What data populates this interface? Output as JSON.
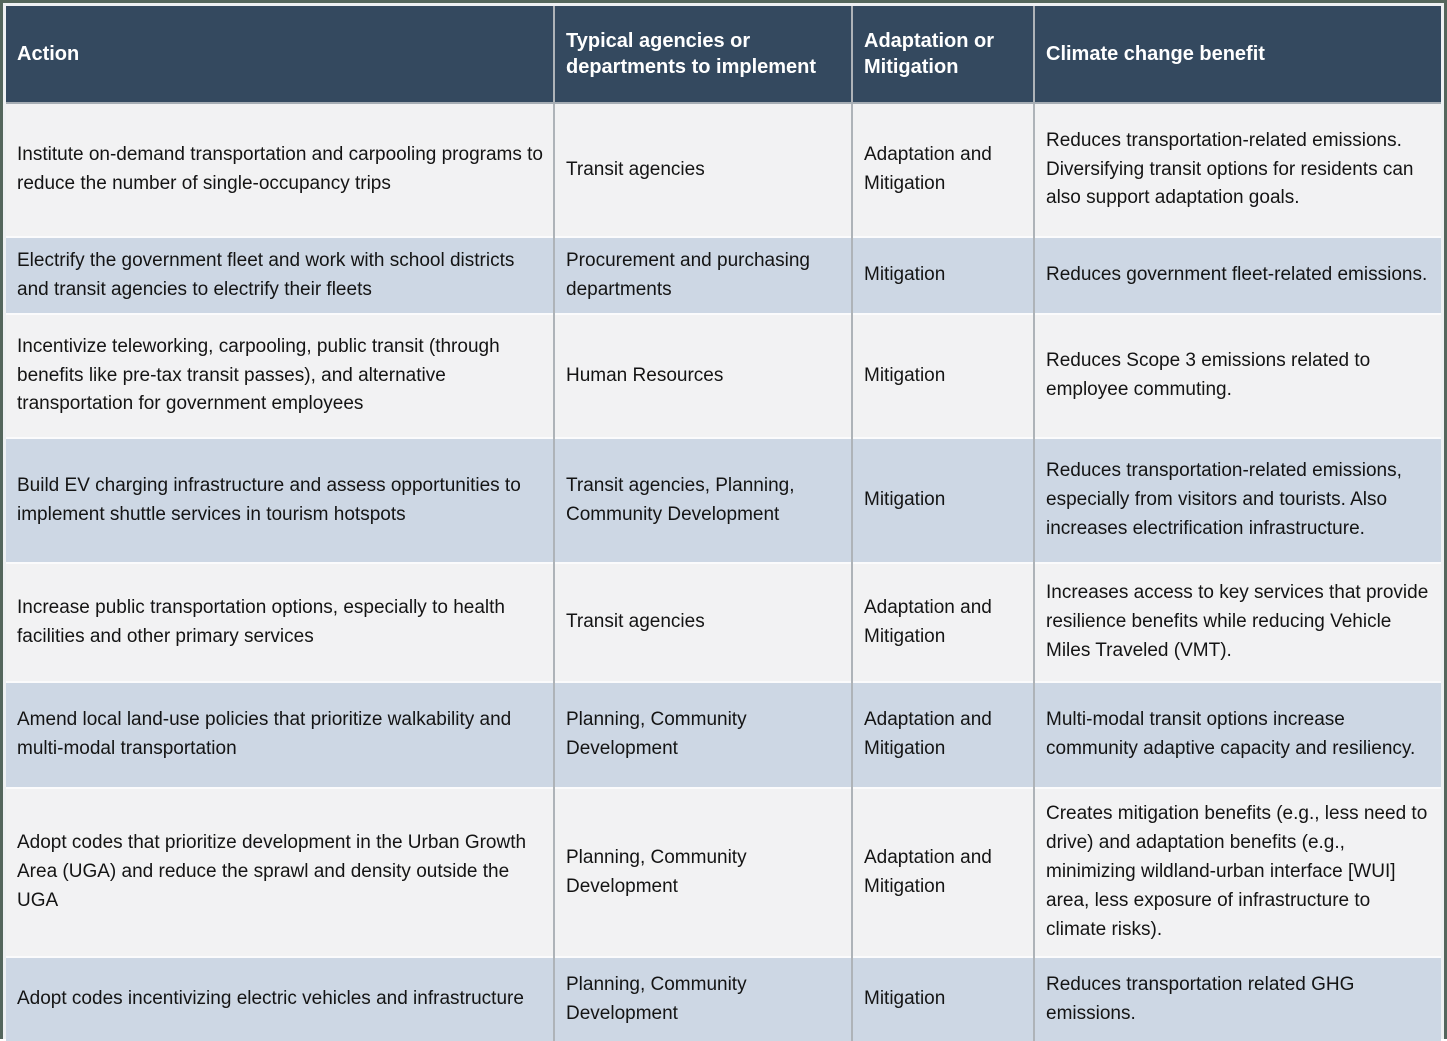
{
  "colors": {
    "frame-border": "#54665c",
    "header-bg": "#34495f",
    "header-text": "#ffffff",
    "header-divider": "#a6adb4",
    "cell-border": "#aeb3b8",
    "row-separator": "#fbfbfc",
    "row-gray": "#f2f2f3",
    "row-blue": "#cdd7e4",
    "body-text": "#141414"
  },
  "table": {
    "columns": [
      {
        "label": "Action"
      },
      {
        "label": "Typical agencies or departments to implement"
      },
      {
        "label": "Adaptation or Mitigation"
      },
      {
        "label": "Climate change benefit"
      }
    ],
    "rows": [
      {
        "action": "Institute on-demand transportation and carpooling programs to reduce the number of single-occupancy trips",
        "agencies": "Transit agencies",
        "category": "Adaptation and Mitigation",
        "benefit": "Reduces transportation-related emissions. Diversifying transit options for residents can also support adaptation goals."
      },
      {
        "action": "Electrify the government fleet and work with school districts and transit agencies to electrify their fleets",
        "agencies": "Procurement and purchasing departments",
        "category": "Mitigation",
        "benefit": "Reduces government fleet-related emissions."
      },
      {
        "action": "Incentivize teleworking, carpooling, public transit (through benefits like pre-tax transit passes), and alternative transportation for government employees",
        "agencies": "Human Resources",
        "category": "Mitigation",
        "benefit": "Reduces Scope 3 emissions related to employee commuting."
      },
      {
        "action": "Build EV charging infrastructure and assess opportunities to implement shuttle services in tourism hotspots",
        "agencies": "Transit agencies, Planning, Community Development",
        "category": "Mitigation",
        "benefit": "Reduces transportation-related emissions, especially from visitors and tourists. Also increases electrification infrastructure."
      },
      {
        "action": "Increase public transportation options, especially to health facilities and other primary services",
        "agencies": "Transit agencies",
        "category": "Adaptation and Mitigation",
        "benefit": "Increases access to key services that provide resilience benefits while reducing Vehicle Miles Traveled (VMT)."
      },
      {
        "action": "Amend local land-use policies that prioritize walkability and multi-modal transportation",
        "agencies": "Planning, Community Development",
        "category": "Adaptation and Mitigation",
        "benefit": "Multi-modal transit options increase community adaptive capacity and resiliency."
      },
      {
        "action": "Adopt codes that prioritize development in the Urban Growth Area (UGA) and reduce the sprawl and density outside the UGA",
        "agencies": "Planning, Community Development",
        "category": "Adaptation and Mitigation",
        "benefit": "Creates mitigation benefits (e.g., less need to drive) and adaptation benefits (e.g., minimizing wildland-urban interface [WUI] area, less exposure of infrastructure to climate risks)."
      },
      {
        "action": "Adopt codes incentivizing electric vehicles and infrastructure",
        "agencies": "Planning, Community Development",
        "category": "Mitigation",
        "benefit": "Reduces transportation related GHG emissions."
      }
    ]
  }
}
